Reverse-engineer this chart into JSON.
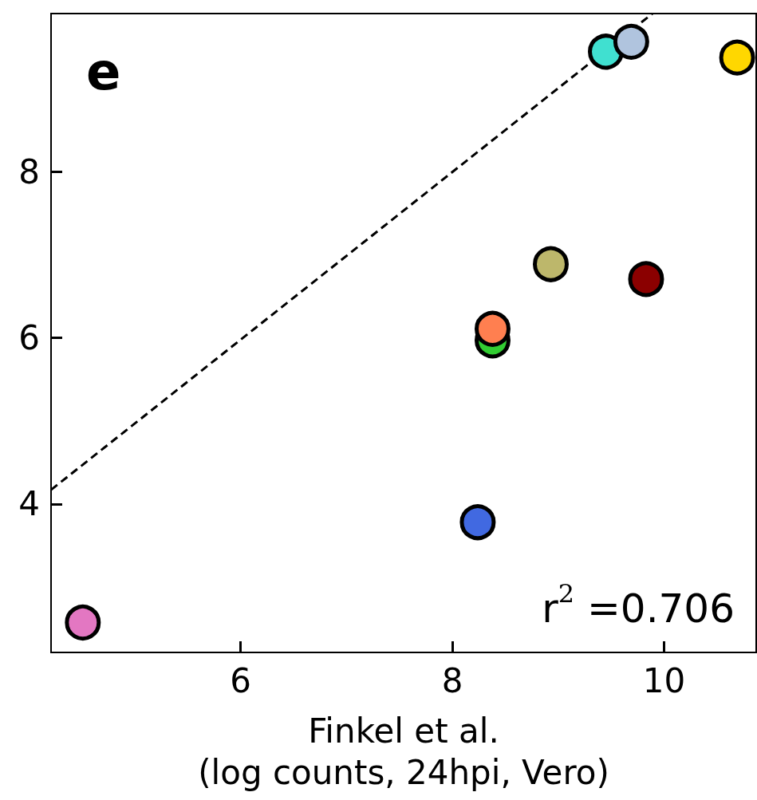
{
  "chart_data": {
    "type": "scatter",
    "xlabel": "Finkel et al.\n(log counts, 24hpi, Vero)",
    "annotations": [
      "e",
      "r$^{2}$ =0.706"
    ],
    "x": [
      4.51,
      8.24,
      8.38,
      8.38,
      8.93,
      9.83,
      9.45,
      9.69,
      10.69
    ],
    "values": [
      2.57,
      3.78,
      5.97,
      6.11,
      6.89,
      6.71,
      9.45,
      9.57,
      9.38
    ],
    "colors": [
      "#e377c2",
      "#4169e1",
      "#32cd32",
      "#ff7f50",
      "#bdb76b",
      "#8b0000",
      "#40e0d0",
      "#b0c4de",
      "#ffd700"
    ],
    "marker": "circle",
    "series": [
      {
        "type": "line",
        "x": [
          4.21,
          9.89
        ],
        "values": [
          4.17,
          9.91
        ],
        "color": "#000000",
        "line_style": "dashed",
        "marker": "none"
      }
    ],
    "xlim": [
      4.21,
      10.87
    ],
    "ylim": [
      2.21,
      9.91
    ],
    "xticks": [
      6,
      8,
      10
    ],
    "yticks": [
      4,
      6,
      8
    ],
    "grid": false
  }
}
